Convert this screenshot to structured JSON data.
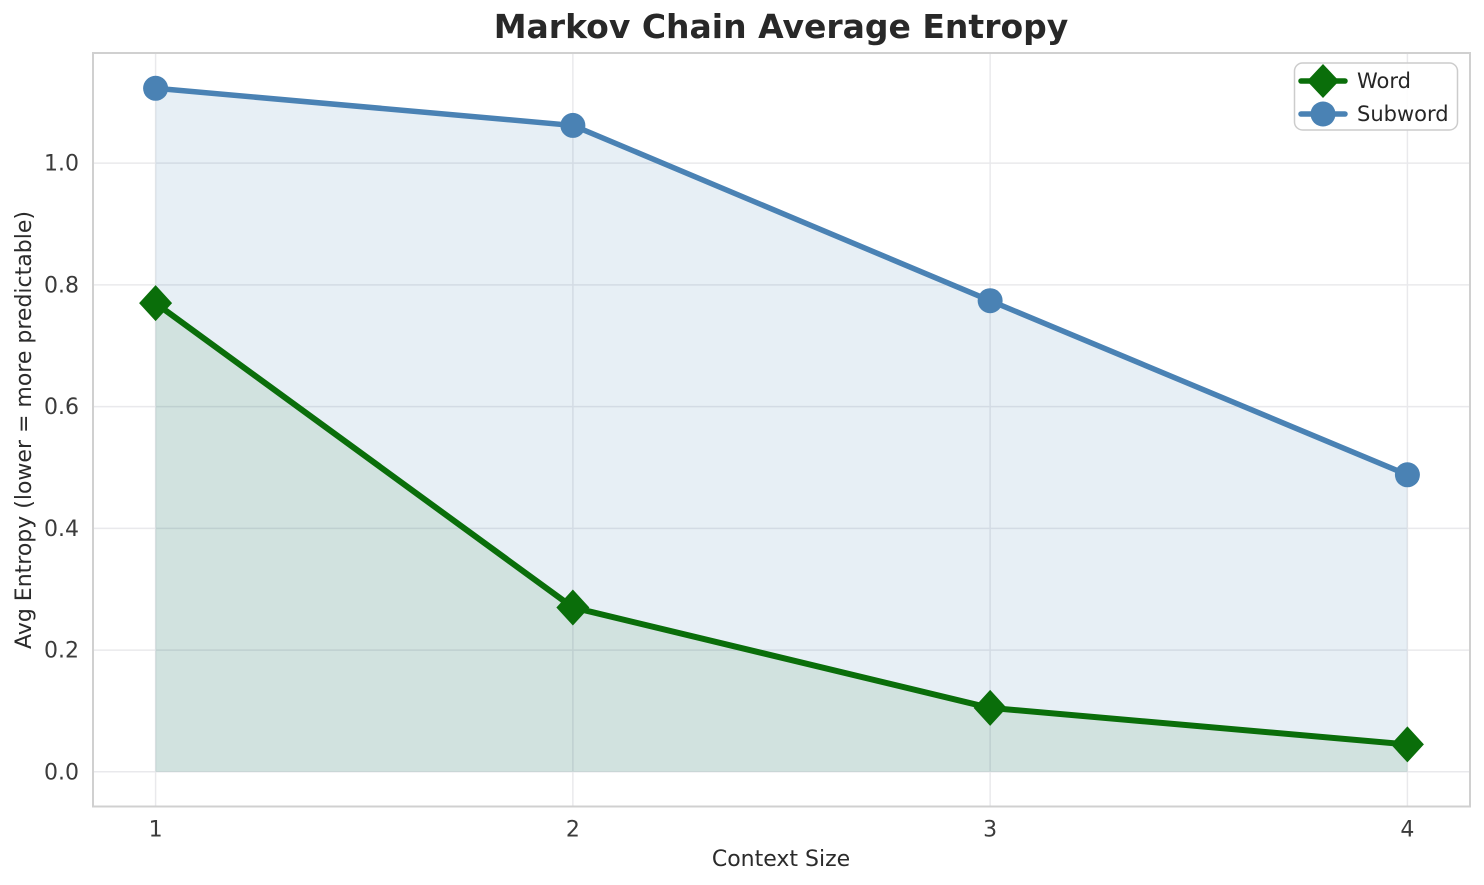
{
  "chart_data": {
    "type": "line",
    "title": "Markov Chain Average Entropy",
    "xlabel": "Context Size",
    "ylabel": "Avg Entropy (lower = more predictable)",
    "x": [
      1,
      2,
      3,
      4
    ],
    "series": [
      {
        "name": "Word",
        "marker": "diamond",
        "color": "#0a6e0a",
        "fill_color": "rgba(10,110,10,0.10)",
        "line_width": 6,
        "values": [
          0.77,
          0.27,
          0.105,
          0.045
        ]
      },
      {
        "name": "Subword",
        "marker": "circle",
        "color": "#4a82b4",
        "fill_color": "rgba(70,130,180,0.13)",
        "line_width": 5.5,
        "values": [
          1.123,
          1.062,
          0.774,
          0.488
        ]
      }
    ],
    "xticks": [
      1,
      2,
      3,
      4
    ],
    "ytick_labels": [
      "0.0",
      "0.2",
      "0.4",
      "0.6",
      "0.8",
      "1.0"
    ],
    "xlim": [
      0.85,
      4.15
    ],
    "ylim": [
      -0.057,
      1.181
    ],
    "fill_baseline": 0,
    "grid": true,
    "legend_position": "upper right"
  }
}
